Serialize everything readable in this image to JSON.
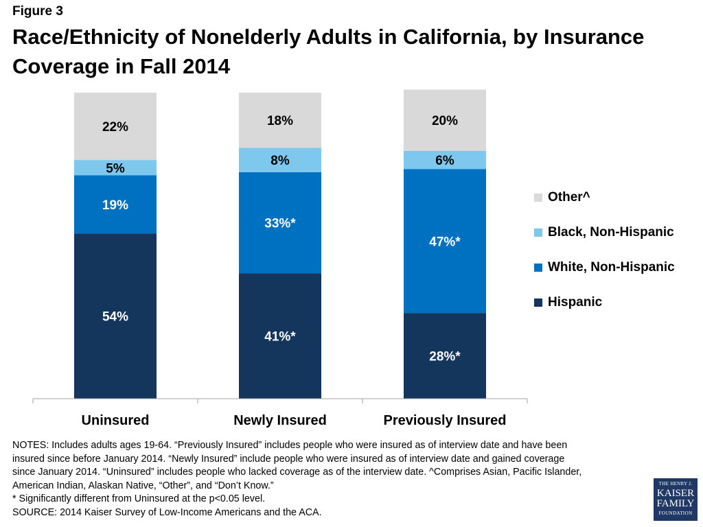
{
  "figure_label": "Figure 3",
  "title": "Race/Ethnicity of Nonelderly Adults in California, by Insurance Coverage in Fall 2014",
  "chart_data": {
    "type": "bar",
    "stacked": true,
    "categories": [
      "Uninsured",
      "Newly Insured",
      "Previously Insured"
    ],
    "series": [
      {
        "name": "Hispanic",
        "color": "#14365d",
        "values": [
          54,
          41,
          28
        ],
        "labels": [
          "54%",
          "41%*",
          "28%*"
        ]
      },
      {
        "name": "White, Non-Hispanic",
        "color": "#0070c0",
        "values": [
          19,
          33,
          47
        ],
        "labels": [
          "19%",
          "33%*",
          "47%*"
        ]
      },
      {
        "name": "Black, Non-Hispanic",
        "color": "#7ec8ee",
        "values": [
          5,
          8,
          6
        ],
        "labels": [
          "5%",
          "8%",
          "6%"
        ]
      },
      {
        "name": "Other^",
        "color": "#d9d9d9",
        "values": [
          22,
          18,
          20
        ],
        "labels": [
          "22%",
          "18%",
          "20%"
        ]
      }
    ],
    "label_colors": [
      "#ffffff",
      "#ffffff",
      "#000000",
      "#000000"
    ],
    "ylim": [
      0,
      100
    ],
    "legend_position": "right",
    "legend_order": [
      "Other^",
      "Black, Non-Hispanic",
      "White, Non-Hispanic",
      "Hispanic"
    ],
    "grid": false
  },
  "notes": [
    "NOTES: Includes adults ages 19-64. “Previously Insured” includes people who were insured as of interview date and have been",
    "insured since before January 2014. “Newly Insured” include people who were insured as of interview date and gained coverage",
    "since January 2014. “Uninsured” includes people who lacked coverage as of the interview date. ^Comprises Asian, Pacific Islander,",
    "American Indian, Alaskan Native, “Other”, and “Don’t Know.”",
    "* Significantly different from Uninsured at the p<0.05 level.",
    "SOURCE: 2014 Kaiser Survey of Low-Income Americans and the ACA."
  ],
  "logo": {
    "line1": "THE HENRY J.",
    "line2": "KAISER",
    "line3": "FAMILY",
    "line4": "FOUNDATION"
  }
}
